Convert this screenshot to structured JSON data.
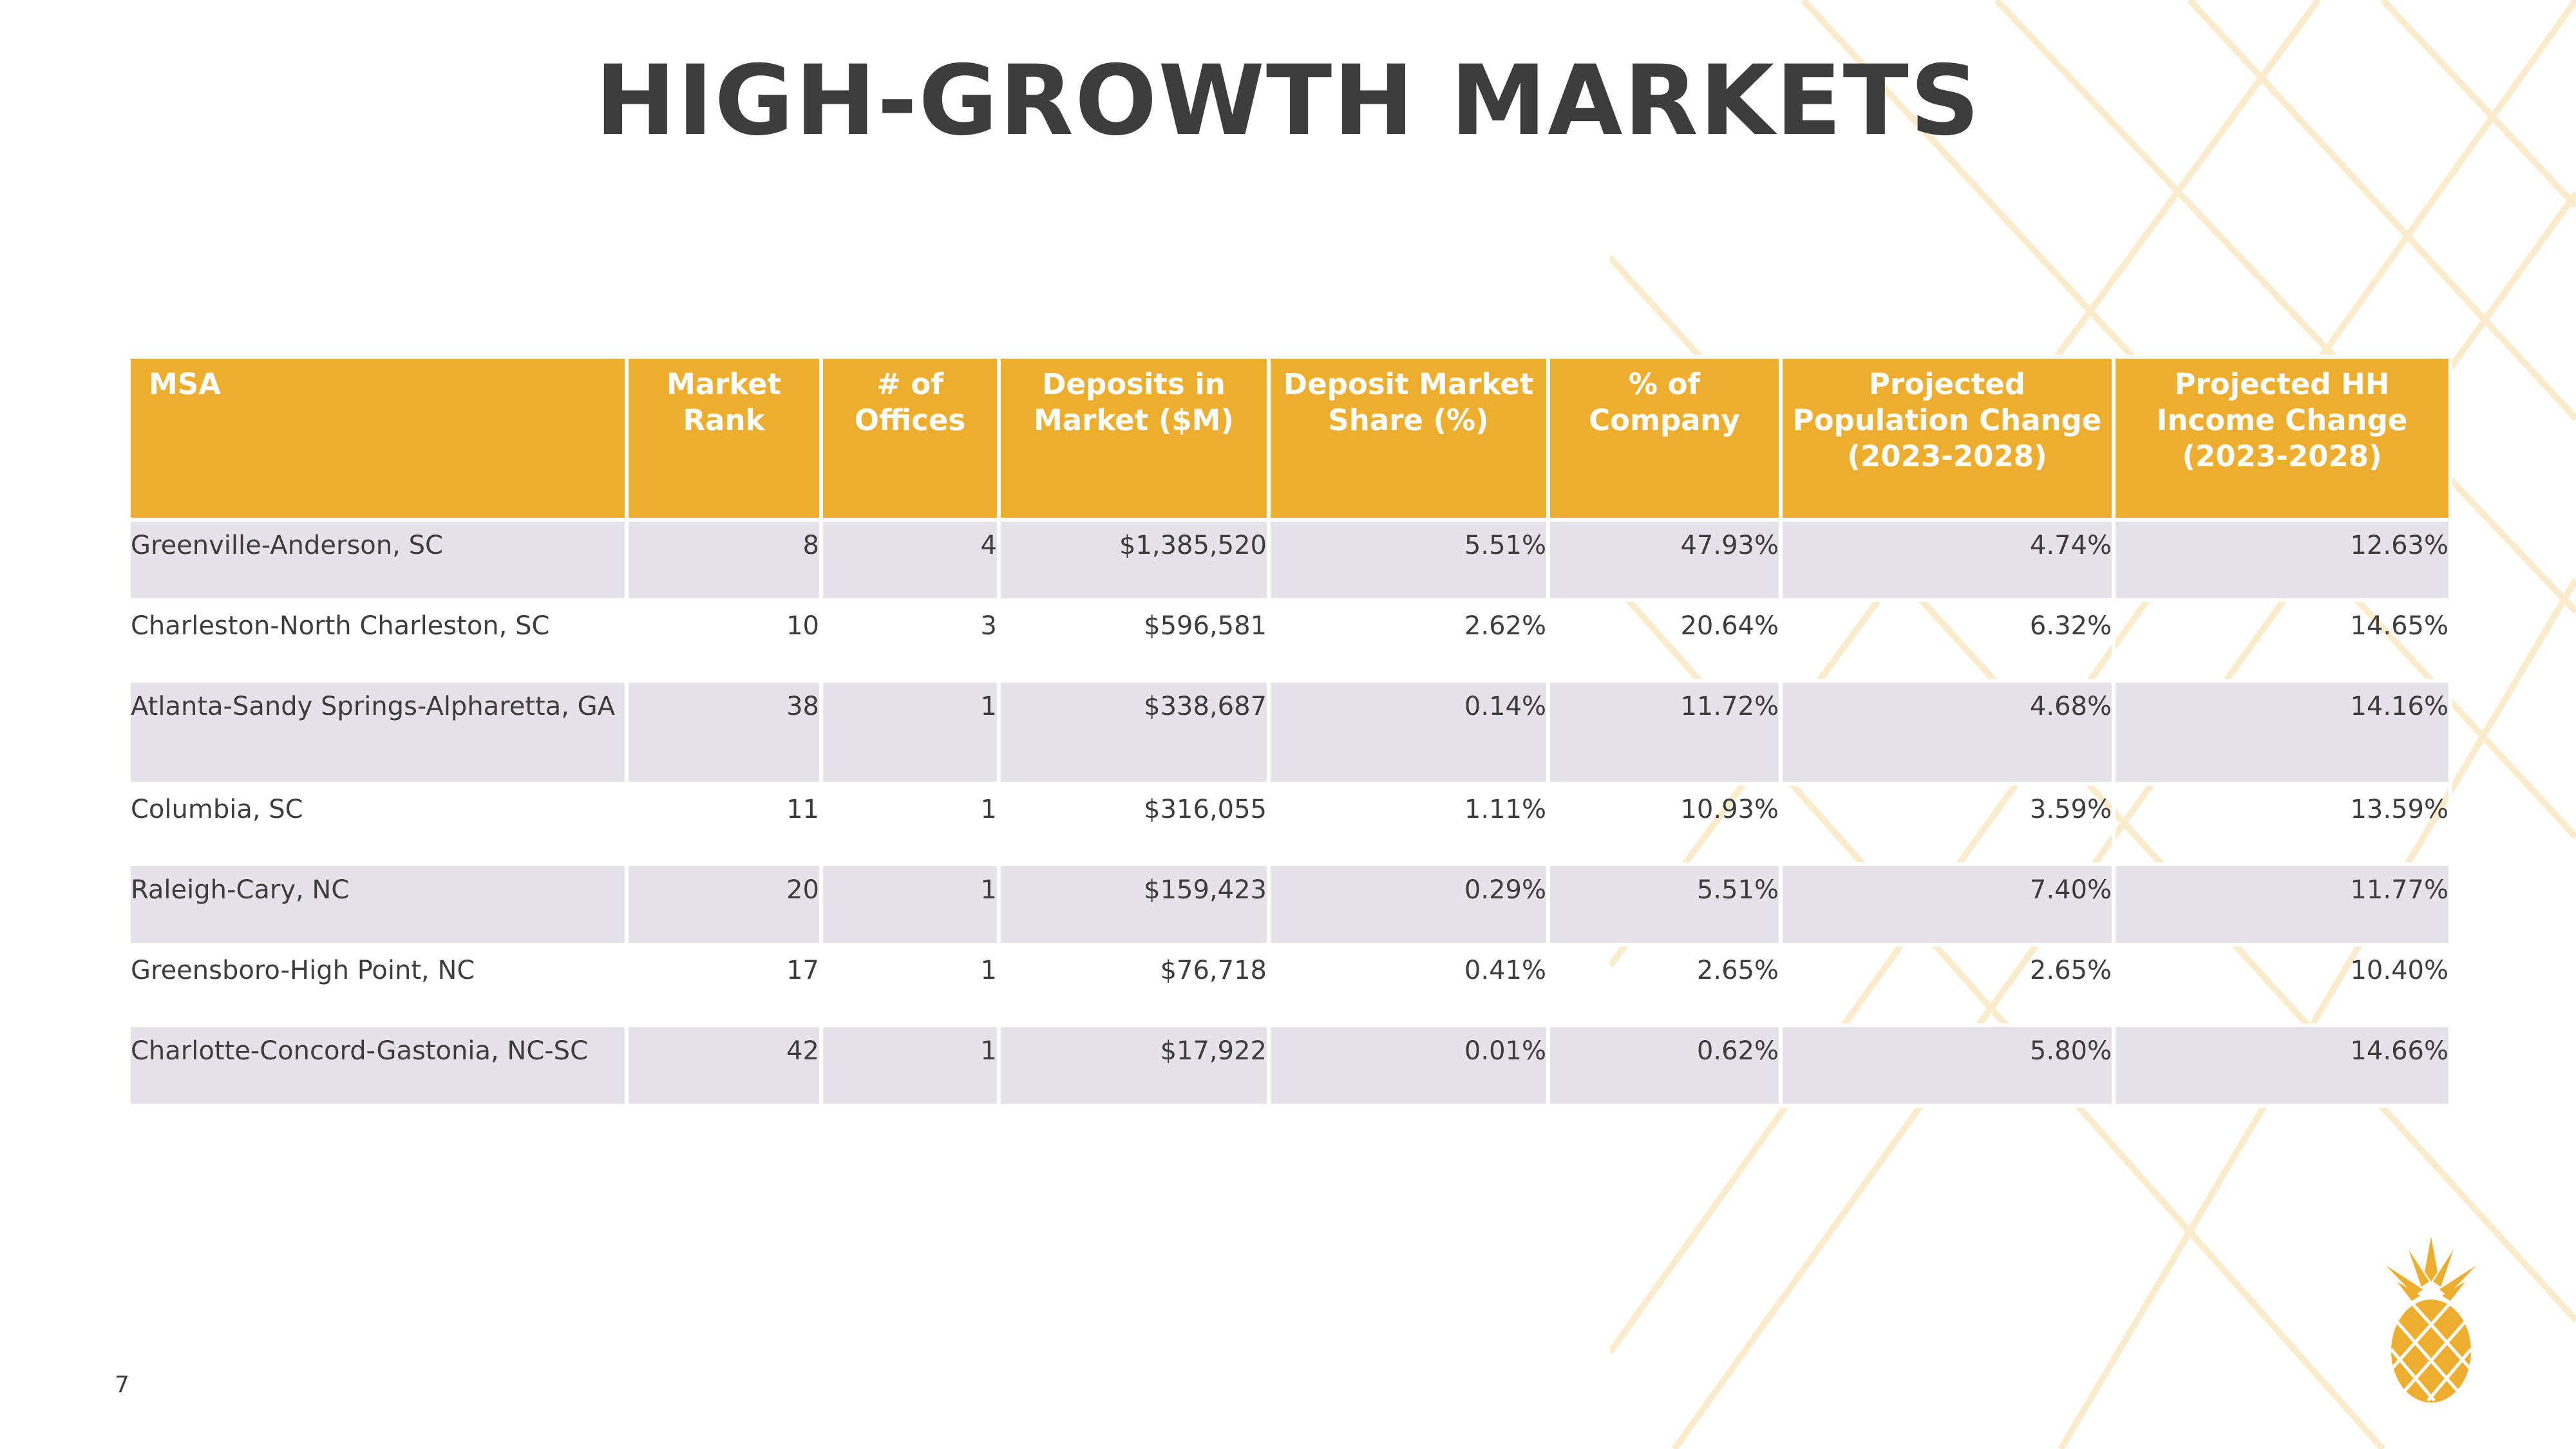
{
  "title": "HIGH-GROWTH MARKETS",
  "page_number": "7",
  "colors": {
    "accent": "#EDAE30",
    "row_shade": "#E6E2E9",
    "text": "#3d3d3d"
  },
  "table": {
    "headers": [
      "MSA",
      "Market Rank",
      "# of Offices",
      "Deposits in Market ($M)",
      "Deposit Market Share (%)",
      "% of Company",
      "Projected Population Change (2023-2028)",
      "Projected HH Income Change (2023-2028)"
    ],
    "rows": [
      [
        "Greenville-Anderson, SC",
        "8",
        "4",
        "$1,385,520",
        "5.51%",
        "47.93%",
        "4.74%",
        "12.63%"
      ],
      [
        "Charleston-North Charleston, SC",
        "10",
        "3",
        "$596,581",
        "2.62%",
        "20.64%",
        "6.32%",
        "14.65%"
      ],
      [
        "Atlanta-Sandy Springs-Alpharetta, GA",
        "38",
        "1",
        "$338,687",
        "0.14%",
        "11.72%",
        "4.68%",
        "14.16%"
      ],
      [
        "Columbia, SC",
        "11",
        "1",
        "$316,055",
        "1.11%",
        "10.93%",
        "3.59%",
        "13.59%"
      ],
      [
        "Raleigh-Cary, NC",
        "20",
        "1",
        "$159,423",
        "0.29%",
        "5.51%",
        "7.40%",
        "11.77%"
      ],
      [
        "Greensboro-High Point, NC",
        "17",
        "1",
        "$76,718",
        "0.41%",
        "2.65%",
        "2.65%",
        "10.40%"
      ],
      [
        "Charlotte-Concord-Gastonia, NC-SC",
        "42",
        "1",
        "$17,922",
        "0.01%",
        "0.62%",
        "5.80%",
        "14.66%"
      ]
    ]
  },
  "logo_icon": "pineapple-icon"
}
